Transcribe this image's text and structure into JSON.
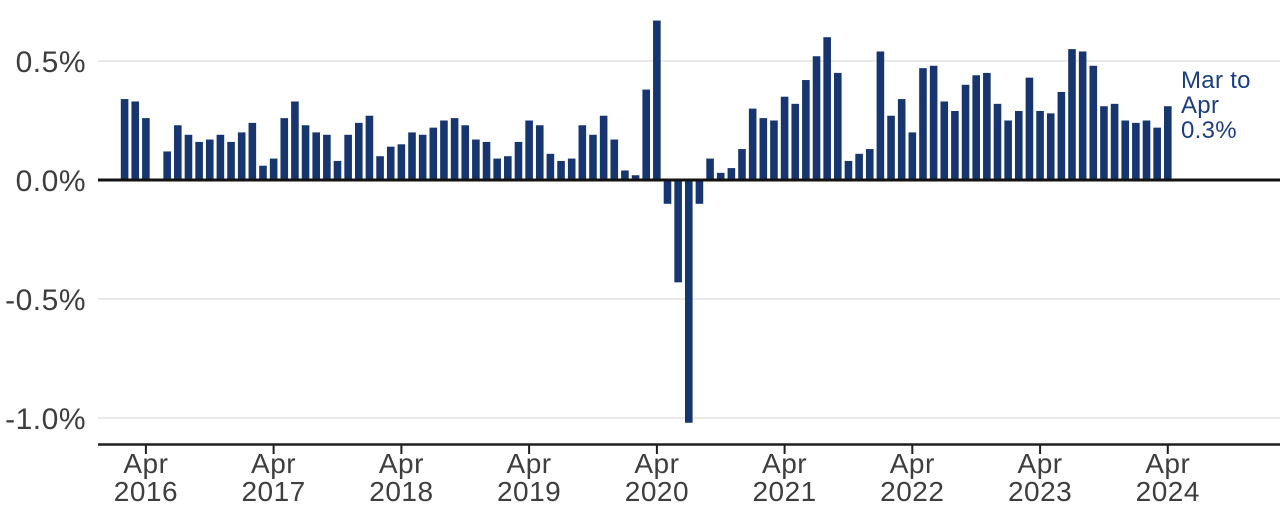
{
  "chart_data": {
    "type": "bar",
    "title": "",
    "xlabel": "",
    "ylabel": "",
    "unit": "percent change month-over-month",
    "grid": "horizontal",
    "legend": "none",
    "ylim": [
      -1.1,
      0.72
    ],
    "categories": [
      "Feb 2016",
      "Mar 2016",
      "Apr 2016",
      "May 2016",
      "Jun 2016",
      "Jul 2016",
      "Aug 2016",
      "Sep 2016",
      "Oct 2016",
      "Nov 2016",
      "Dec 2016",
      "Jan 2017",
      "Feb 2017",
      "Mar 2017",
      "Apr 2017",
      "May 2017",
      "Jun 2017",
      "Jul 2017",
      "Aug 2017",
      "Sep 2017",
      "Oct 2017",
      "Nov 2017",
      "Dec 2017",
      "Jan 2018",
      "Feb 2018",
      "Mar 2018",
      "Apr 2018",
      "May 2018",
      "Jun 2018",
      "Jul 2018",
      "Aug 2018",
      "Sep 2018",
      "Oct 2018",
      "Nov 2018",
      "Dec 2018",
      "Jan 2019",
      "Feb 2019",
      "Mar 2019",
      "Apr 2019",
      "May 2019",
      "Jun 2019",
      "Jul 2019",
      "Aug 2019",
      "Sep 2019",
      "Oct 2019",
      "Nov 2019",
      "Dec 2019",
      "Jan 2020",
      "Feb 2020",
      "Mar 2020",
      "Apr 2020",
      "May 2020",
      "Jun 2020",
      "Jul 2020",
      "Aug 2020",
      "Sep 2020",
      "Oct 2020",
      "Nov 2020",
      "Dec 2020",
      "Jan 2021",
      "Feb 2021",
      "Mar 2021",
      "Apr 2021",
      "May 2021",
      "Jun 2021",
      "Jul 2021",
      "Aug 2021",
      "Sep 2021",
      "Oct 2021",
      "Nov 2021",
      "Dec 2021",
      "Jan 2022",
      "Feb 2022",
      "Mar 2022",
      "Apr 2022",
      "May 2022",
      "Jun 2022",
      "Jul 2022",
      "Aug 2022",
      "Sep 2022",
      "Oct 2022",
      "Nov 2022",
      "Dec 2022",
      "Jan 2023",
      "Feb 2023",
      "Mar 2023",
      "Apr 2023",
      "May 2023",
      "Jun 2023",
      "Jul 2023",
      "Aug 2023",
      "Sep 2023",
      "Oct 2023",
      "Nov 2023",
      "Dec 2023",
      "Jan 2024",
      "Feb 2024",
      "Mar 2024",
      "Apr 2024"
    ],
    "values": [
      0.34,
      0.33,
      0.26,
      0.0,
      0.12,
      0.23,
      0.19,
      0.16,
      0.17,
      0.19,
      0.16,
      0.2,
      0.24,
      0.06,
      0.09,
      0.26,
      0.33,
      0.23,
      0.2,
      0.19,
      0.08,
      0.19,
      0.24,
      0.27,
      0.1,
      0.14,
      0.15,
      0.2,
      0.19,
      0.22,
      0.25,
      0.26,
      0.23,
      0.17,
      0.16,
      0.09,
      0.1,
      0.16,
      0.25,
      0.23,
      0.11,
      0.08,
      0.09,
      0.23,
      0.19,
      0.27,
      0.17,
      0.04,
      0.02,
      0.38,
      0.67,
      -0.1,
      -0.43,
      -1.02,
      -0.1,
      0.09,
      0.03,
      0.05,
      0.13,
      0.3,
      0.26,
      0.25,
      0.35,
      0.32,
      0.42,
      0.52,
      0.6,
      0.45,
      0.08,
      0.11,
      0.13,
      0.54,
      0.27,
      0.34,
      0.2,
      0.47,
      0.48,
      0.33,
      0.29,
      0.4,
      0.44,
      0.45,
      0.32,
      0.25,
      0.29,
      0.43,
      0.29,
      0.28,
      0.37,
      0.55,
      0.54,
      0.48,
      0.31,
      0.32,
      0.25,
      0.24,
      0.25,
      0.22,
      0.31
    ],
    "yticks": [
      {
        "value": 0.5,
        "label": "0.5%"
      },
      {
        "value": 0.0,
        "label": "0.0%"
      },
      {
        "value": -0.5,
        "label": "-0.5%"
      },
      {
        "value": -1.0,
        "label": "-1.0%"
      }
    ],
    "xticks": [
      {
        "category": "Apr 2016",
        "line1": "Apr",
        "line2": "2016"
      },
      {
        "category": "Apr 2017",
        "line1": "Apr",
        "line2": "2017"
      },
      {
        "category": "Apr 2018",
        "line1": "Apr",
        "line2": "2018"
      },
      {
        "category": "Apr 2019",
        "line1": "Apr",
        "line2": "2019"
      },
      {
        "category": "Apr 2020",
        "line1": "Apr",
        "line2": "2020"
      },
      {
        "category": "Apr 2021",
        "line1": "Apr",
        "line2": "2021"
      },
      {
        "category": "Apr 2022",
        "line1": "Apr",
        "line2": "2022"
      },
      {
        "category": "Apr 2023",
        "line1": "Apr",
        "line2": "2023"
      },
      {
        "category": "Apr 2024",
        "line1": "Apr",
        "line2": "2024"
      }
    ],
    "annotation": {
      "lines": [
        "Mar to",
        "Apr",
        "0.3%"
      ]
    },
    "colors": {
      "bar": "#17366F",
      "annotation": "#1C3E80",
      "axis_label": "#3E3E3E",
      "gridline": "#EAEAEA",
      "zero_line": "#121212",
      "axis_line": "#1F1F1F",
      "background": "#FFFFFF"
    }
  }
}
